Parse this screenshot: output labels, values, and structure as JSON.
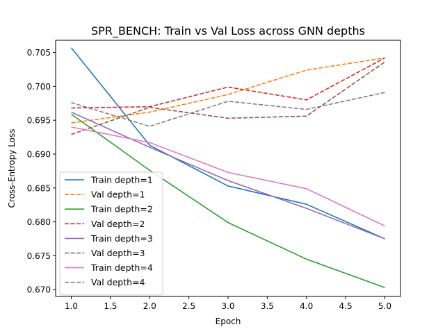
{
  "chart_data": {
    "type": "line",
    "title": "SPR_BENCH: Train vs Val Loss across GNN depths",
    "xlabel": "Epoch",
    "ylabel": "Cross-Entropy Loss",
    "x": [
      1,
      2,
      3,
      4,
      5
    ],
    "xlim": [
      0.8,
      5.2
    ],
    "ylim": [
      0.669,
      0.7068
    ],
    "xticks": [
      "1.0",
      "1.5",
      "2.0",
      "2.5",
      "3.0",
      "3.5",
      "4.0",
      "4.5",
      "5.0"
    ],
    "yticks": [
      "0.670",
      "0.675",
      "0.680",
      "0.685",
      "0.690",
      "0.695",
      "0.700",
      "0.705"
    ],
    "grid": false,
    "legend_position": "lower-left",
    "series": [
      {
        "name": "Train depth=1",
        "color": "#1f77b4",
        "dash": "solid",
        "values": [
          0.7057,
          0.6913,
          0.6853,
          0.6826,
          0.6775
        ]
      },
      {
        "name": "Val depth=1",
        "color": "#ff7f0e",
        "dash": "dashed",
        "values": [
          0.6946,
          0.6962,
          0.6988,
          0.7024,
          0.7042
        ]
      },
      {
        "name": "Train depth=2",
        "color": "#2ca02c",
        "dash": "solid",
        "values": [
          0.6959,
          0.6876,
          0.6799,
          0.6745,
          0.6703
        ]
      },
      {
        "name": "Val depth=2",
        "color": "#d62728",
        "dash": "dashed",
        "values": [
          0.6968,
          0.697,
          0.6999,
          0.698,
          0.7042
        ]
      },
      {
        "name": "Train depth=3",
        "color": "#9467bd",
        "dash": "solid",
        "values": [
          0.6962,
          0.691,
          0.6861,
          0.682,
          0.6775
        ]
      },
      {
        "name": "Val depth=3",
        "color": "#8c564b",
        "dash": "dashed",
        "values": [
          0.6929,
          0.6969,
          0.6953,
          0.6956,
          0.7036
        ]
      },
      {
        "name": "Train depth=4",
        "color": "#e377c2",
        "dash": "solid",
        "values": [
          0.694,
          0.6917,
          0.6873,
          0.6849,
          0.6794
        ]
      },
      {
        "name": "Val depth=4",
        "color": "#7f7f7f",
        "dash": "dashed",
        "values": [
          0.6976,
          0.6941,
          0.6978,
          0.6966,
          0.6991
        ]
      }
    ]
  }
}
